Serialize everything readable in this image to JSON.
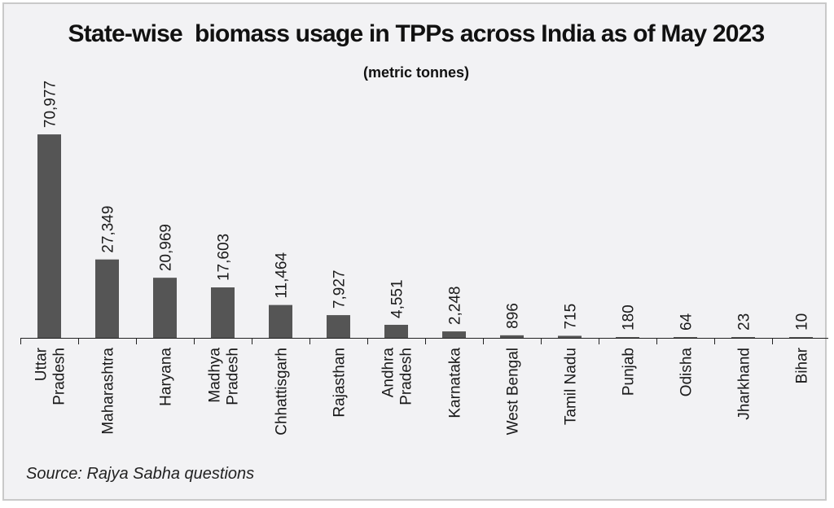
{
  "chart_data": {
    "type": "bar",
    "title": "State-wise  biomass usage in TPPs across India as of May 2023",
    "subtitle": "(metric tonnes)",
    "categories": [
      [
        "Uttar",
        "Pradesh"
      ],
      [
        "Maharashtra"
      ],
      [
        "Haryana"
      ],
      [
        "Madhya",
        "Pradesh"
      ],
      [
        "Chhattisgarh"
      ],
      [
        "Rajasthan"
      ],
      [
        "Andhra",
        "Pradesh"
      ],
      [
        "Karnataka"
      ],
      [
        "West Bengal"
      ],
      [
        "Tamil Nadu"
      ],
      [
        "Punjab"
      ],
      [
        "Odisha"
      ],
      [
        "Jharkhand"
      ],
      [
        "Bihar"
      ]
    ],
    "values": [
      70977,
      27349,
      20969,
      17603,
      11464,
      7927,
      4551,
      2248,
      896,
      715,
      180,
      64,
      23,
      10
    ],
    "value_labels": [
      "70,977",
      "27,349",
      "20,969",
      "17,603",
      "11,464",
      "7,927",
      "4,551",
      "2,248",
      "896",
      "715",
      "180",
      "64",
      "23",
      "10"
    ],
    "xlabel": "",
    "ylabel": "",
    "ylim": [
      0,
      71000
    ],
    "grid": false,
    "legend": "none",
    "bar_color": "#555555",
    "source": "Source: Rajya Sabha questions"
  }
}
